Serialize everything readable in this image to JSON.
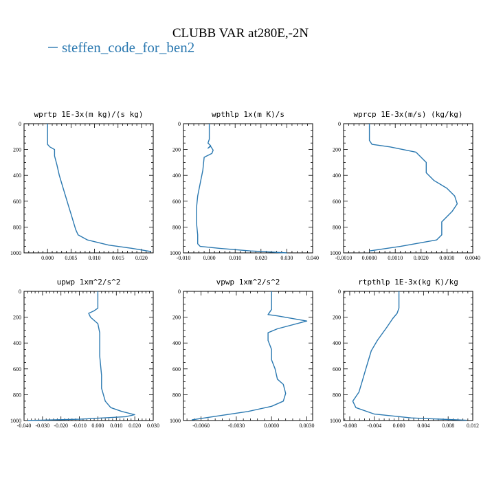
{
  "figure": {
    "title": "CLUBB VAR at280E,-2N",
    "legend": [
      {
        "name": "steffen_code_for_ben2",
        "color": "#2a78b0"
      }
    ]
  },
  "chart_data": [
    {
      "type": "line",
      "title": "wprtp  1E-3x(m kg)/(s kg)",
      "xlim": [
        -0.005,
        0.0225
      ],
      "ylim": [
        1000,
        0
      ],
      "xticks": [
        0.0,
        0.005,
        0.01,
        0.015,
        0.02
      ],
      "xtick_labels": [
        "0.000",
        "0.005",
        "0.010",
        "0.015",
        "0.020"
      ],
      "yticks": [
        0,
        200,
        400,
        600,
        800,
        1000
      ],
      "ytick_labels": [
        "0",
        "200",
        "400",
        "600",
        "800",
        "1000"
      ],
      "series": [
        {
          "name": "steffen_code_for_ben2",
          "color": "#2a78b0",
          "x": [
            0.0,
            0.0,
            0.0,
            0.0005,
            0.0015,
            0.0015,
            0.002,
            0.0025,
            0.003,
            0.0035,
            0.004,
            0.0045,
            0.005,
            0.0055,
            0.006,
            0.0065,
            0.0085,
            0.013,
            0.018,
            0.022
          ],
          "y": [
            0,
            120,
            160,
            180,
            200,
            250,
            320,
            400,
            460,
            520,
            580,
            640,
            700,
            760,
            820,
            860,
            900,
            940,
            965,
            990
          ]
        }
      ]
    },
    {
      "type": "line",
      "title": "wpthlp  1x(m K)/s",
      "xlim": [
        -0.01,
        0.04
      ],
      "ylim": [
        1000,
        0
      ],
      "xticks": [
        -0.01,
        0.0,
        0.01,
        0.02,
        0.03,
        0.04
      ],
      "xtick_labels": [
        "-0.010",
        "0.000",
        "0.010",
        "0.020",
        "0.030",
        "0.040"
      ],
      "yticks": [
        0,
        200,
        400,
        600,
        800,
        1000
      ],
      "ytick_labels": [
        "0",
        "200",
        "400",
        "600",
        "800",
        "1000"
      ],
      "series": [
        {
          "name": "steffen_code_for_ben2",
          "color": "#2a78b0",
          "x": [
            0.0,
            0.0,
            -0.0005,
            0.0005,
            -0.0005,
            0.0005,
            0.0015,
            0.001,
            -0.002,
            -0.0025,
            -0.0035,
            -0.0045,
            -0.005,
            -0.005,
            -0.0045,
            -0.0045,
            -0.0045,
            -0.0035,
            0.004,
            0.016,
            0.03
          ],
          "y": [
            0,
            120,
            150,
            170,
            190,
            175,
            205,
            230,
            260,
            360,
            460,
            560,
            660,
            760,
            860,
            900,
            930,
            950,
            965,
            985,
            1000
          ]
        }
      ]
    },
    {
      "type": "line",
      "title": "wprcp  1E-3x(m/s) (kg/kg)",
      "xlim": [
        -0.001,
        0.004
      ],
      "ylim": [
        1000,
        0
      ],
      "xticks": [
        -0.001,
        0.0,
        0.001,
        0.002,
        0.003,
        0.004
      ],
      "xtick_labels": [
        "-0.0010",
        "0.0000",
        "0.0010",
        "0.0020",
        "0.0030",
        "0.0040"
      ],
      "yticks": [
        0,
        200,
        400,
        600,
        800,
        1000
      ],
      "ytick_labels": [
        "0",
        "200",
        "400",
        "600",
        "800",
        "1000"
      ],
      "series": [
        {
          "name": "steffen_code_for_ben2",
          "color": "#2a78b0",
          "x": [
            0.0,
            0.0,
            0.0001,
            0.0008,
            0.0018,
            0.0022,
            0.0022,
            0.0025,
            0.003,
            0.0033,
            0.0034,
            0.0032,
            0.0028,
            0.0028,
            0.0026,
            0.0012,
            0.0
          ],
          "y": [
            0,
            130,
            160,
            180,
            220,
            300,
            380,
            440,
            500,
            560,
            620,
            680,
            760,
            860,
            900,
            950,
            985
          ]
        }
      ]
    },
    {
      "type": "line",
      "title": "upwp  1xm^2/s^2",
      "xlim": [
        -0.04,
        0.03
      ],
      "ylim": [
        1000,
        0
      ],
      "xticks": [
        -0.04,
        -0.03,
        -0.02,
        -0.01,
        0.0,
        0.01,
        0.02,
        0.03
      ],
      "xtick_labels": [
        "-0.040",
        "-0.030",
        "-0.020",
        "-0.010",
        "0.000",
        "0.010",
        "0.020",
        "0.030"
      ],
      "yticks": [
        0,
        200,
        400,
        600,
        800,
        1000
      ],
      "ytick_labels": [
        "0",
        "200",
        "400",
        "600",
        "800",
        "1000"
      ],
      "series": [
        {
          "name": "steffen_code_for_ben2",
          "color": "#2a78b0",
          "x": [
            0.0,
            0.0,
            -0.002,
            -0.005,
            -0.004,
            0.0,
            0.001,
            0.001,
            0.002,
            0.002,
            0.003,
            0.004,
            0.007,
            0.013,
            0.02,
            0.015,
            -0.01,
            -0.038
          ],
          "y": [
            0,
            130,
            150,
            170,
            200,
            250,
            320,
            500,
            650,
            750,
            800,
            850,
            900,
            930,
            955,
            970,
            990,
            1000
          ]
        }
      ]
    },
    {
      "type": "line",
      "title": "vpwp  1xm^2/s^2",
      "xlim": [
        -0.0075,
        0.0035
      ],
      "ylim": [
        1000,
        0
      ],
      "xticks": [
        -0.006,
        -0.003,
        0.0,
        0.003
      ],
      "xtick_labels": [
        "-0.0060",
        "-0.0030",
        "0.0000",
        "0.0030"
      ],
      "yticks": [
        0,
        200,
        400,
        600,
        800,
        1000
      ],
      "ytick_labels": [
        "0",
        "200",
        "400",
        "600",
        "800",
        "1000"
      ],
      "series": [
        {
          "name": "steffen_code_for_ben2",
          "color": "#2a78b0",
          "x": [
            0.0,
            0.0,
            -0.0003,
            0.0005,
            0.003,
            0.0005,
            -0.0003,
            -0.0003,
            0.0,
            0.0,
            0.0003,
            0.0005,
            0.001,
            0.0012,
            0.001,
            0.0,
            -0.002,
            -0.005,
            -0.0068
          ],
          "y": [
            0,
            140,
            180,
            190,
            230,
            290,
            320,
            380,
            450,
            530,
            600,
            680,
            720,
            790,
            850,
            890,
            930,
            970,
            995
          ]
        }
      ]
    },
    {
      "type": "line",
      "title": "rtpthlp  1E-3x(kg K)/kg",
      "xlim": [
        -0.009,
        0.012
      ],
      "ylim": [
        1000,
        0
      ],
      "xticks": [
        -0.008,
        -0.004,
        0.0,
        0.004,
        0.008,
        0.012
      ],
      "xtick_labels": [
        "-0.008",
        "-0.004",
        "0.000",
        "0.004",
        "0.008",
        "0.012"
      ],
      "yticks": [
        0,
        200,
        400,
        600,
        800,
        1000
      ],
      "ytick_labels": [
        "0",
        "200",
        "400",
        "600",
        "800",
        "1000"
      ],
      "series": [
        {
          "name": "steffen_code_for_ben2",
          "color": "#2a78b0",
          "x": [
            0.0,
            0.0,
            -0.0003,
            -0.001,
            -0.002,
            -0.0035,
            -0.0045,
            -0.005,
            -0.0055,
            -0.006,
            -0.0065,
            -0.0075,
            -0.007,
            -0.004,
            0.002,
            0.011
          ],
          "y": [
            0,
            130,
            170,
            210,
            280,
            380,
            460,
            540,
            620,
            700,
            780,
            850,
            900,
            950,
            980,
            998
          ]
        }
      ]
    }
  ]
}
